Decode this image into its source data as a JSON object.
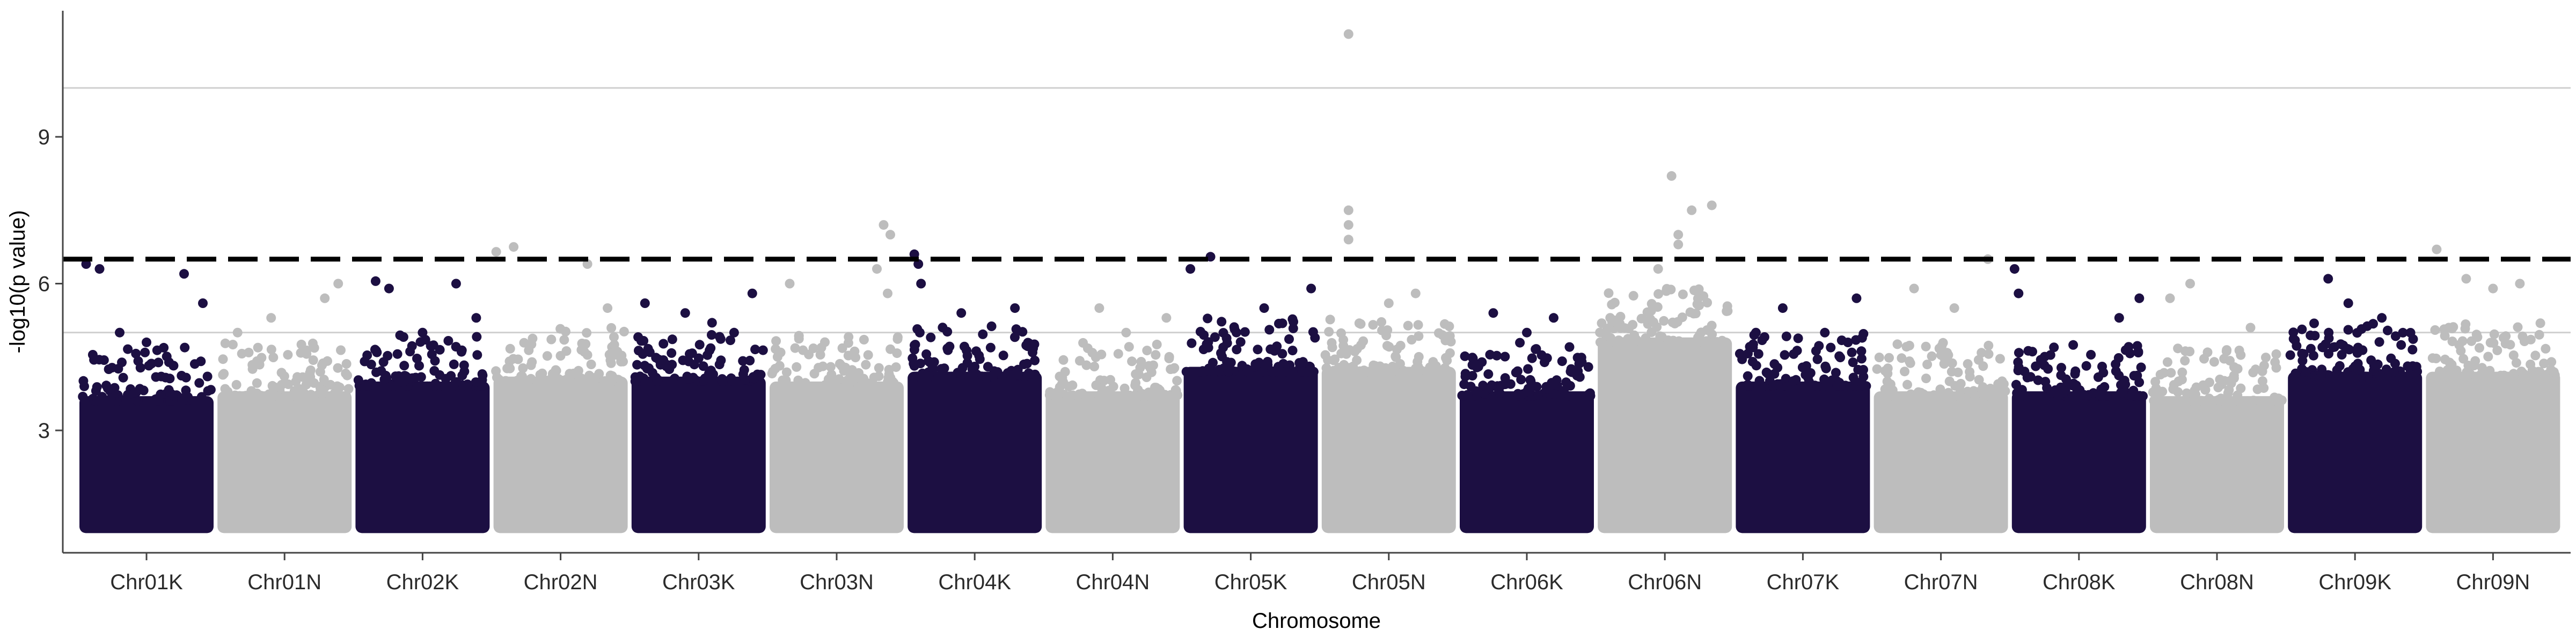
{
  "chart_data": {
    "type": "scatter",
    "subtype": "manhattan",
    "xlabel": "Chromosome",
    "ylabel": "-log10(p value)",
    "categories": [
      "Chr01K",
      "Chr01N",
      "Chr02K",
      "Chr02N",
      "Chr03K",
      "Chr03N",
      "Chr04K",
      "Chr04N",
      "Chr05K",
      "Chr05N",
      "Chr06K",
      "Chr06N",
      "Chr07K",
      "Chr07N",
      "Chr08K",
      "Chr08N",
      "Chr09K",
      "Chr09N"
    ],
    "yticks": [
      3,
      6,
      9
    ],
    "ylim": [
      0.5,
      11.5
    ],
    "grid": "horizontal",
    "colors": {
      "dark": "#1c0f42",
      "light": "#bdbdbd",
      "threshold": "#000000",
      "gridline": "#cfcfcf"
    },
    "thresholds": {
      "dashed": 6.5,
      "solid_upper": 10.0,
      "solid_lower": 5.0
    },
    "point_range_min": 1.0,
    "series": [
      {
        "chromosome": "Chr01K",
        "bulk_max": 4.3,
        "peaks": [
          {
            "pos": 0.05,
            "y": 6.4
          },
          {
            "pos": 0.15,
            "y": 6.3
          },
          {
            "pos": 0.78,
            "y": 6.2
          },
          {
            "pos": 0.92,
            "y": 5.6
          },
          {
            "pos": 0.3,
            "y": 5.0
          },
          {
            "pos": 0.5,
            "y": 4.8
          }
        ]
      },
      {
        "chromosome": "Chr01N",
        "bulk_max": 4.4,
        "peaks": [
          {
            "pos": 0.4,
            "y": 5.3
          },
          {
            "pos": 0.8,
            "y": 5.7
          },
          {
            "pos": 0.9,
            "y": 6.0
          },
          {
            "pos": 0.15,
            "y": 5.0
          }
        ]
      },
      {
        "chromosome": "Chr02K",
        "bulk_max": 4.6,
        "peaks": [
          {
            "pos": 0.15,
            "y": 6.05
          },
          {
            "pos": 0.25,
            "y": 5.9
          },
          {
            "pos": 0.75,
            "y": 6.0
          },
          {
            "pos": 0.9,
            "y": 5.3
          },
          {
            "pos": 0.5,
            "y": 5.0
          }
        ]
      },
      {
        "chromosome": "Chr02N",
        "bulk_max": 4.7,
        "peaks": [
          {
            "pos": 0.02,
            "y": 6.65
          },
          {
            "pos": 0.15,
            "y": 6.75
          },
          {
            "pos": 0.7,
            "y": 6.4
          },
          {
            "pos": 0.85,
            "y": 5.5
          }
        ]
      },
      {
        "chromosome": "Chr03K",
        "bulk_max": 4.7,
        "peaks": [
          {
            "pos": 0.1,
            "y": 5.6
          },
          {
            "pos": 0.4,
            "y": 5.4
          },
          {
            "pos": 0.6,
            "y": 5.2
          },
          {
            "pos": 0.9,
            "y": 5.8
          }
        ]
      },
      {
        "chromosome": "Chr03N",
        "bulk_max": 4.6,
        "peaks": [
          {
            "pos": 0.15,
            "y": 6.0
          },
          {
            "pos": 0.85,
            "y": 7.2
          },
          {
            "pos": 0.9,
            "y": 7.0
          },
          {
            "pos": 0.8,
            "y": 6.3
          },
          {
            "pos": 0.88,
            "y": 5.8
          }
        ]
      },
      {
        "chromosome": "Chr04K",
        "bulk_max": 4.8,
        "peaks": [
          {
            "pos": 0.05,
            "y": 6.6
          },
          {
            "pos": 0.08,
            "y": 6.4
          },
          {
            "pos": 0.1,
            "y": 6.0
          },
          {
            "pos": 0.4,
            "y": 5.4
          },
          {
            "pos": 0.8,
            "y": 5.5
          }
        ]
      },
      {
        "chromosome": "Chr04N",
        "bulk_max": 4.4,
        "peaks": [
          {
            "pos": 0.4,
            "y": 5.5
          },
          {
            "pos": 0.9,
            "y": 5.3
          },
          {
            "pos": 0.6,
            "y": 5.0
          }
        ]
      },
      {
        "chromosome": "Chr05K",
        "bulk_max": 4.9,
        "peaks": [
          {
            "pos": 0.05,
            "y": 6.3
          },
          {
            "pos": 0.2,
            "y": 6.55
          },
          {
            "pos": 0.6,
            "y": 5.5
          },
          {
            "pos": 0.95,
            "y": 5.9
          }
        ]
      },
      {
        "chromosome": "Chr05N",
        "bulk_max": 4.9,
        "peaks": [
          {
            "pos": 0.2,
            "y": 11.1
          },
          {
            "pos": 0.2,
            "y": 7.5
          },
          {
            "pos": 0.2,
            "y": 7.2
          },
          {
            "pos": 0.2,
            "y": 6.9
          },
          {
            "pos": 0.5,
            "y": 5.6
          },
          {
            "pos": 0.7,
            "y": 5.8
          }
        ]
      },
      {
        "chromosome": "Chr06K",
        "bulk_max": 4.4,
        "peaks": [
          {
            "pos": 0.25,
            "y": 5.4
          },
          {
            "pos": 0.7,
            "y": 5.3
          },
          {
            "pos": 0.5,
            "y": 5.0
          }
        ]
      },
      {
        "chromosome": "Chr06N",
        "bulk_max": 5.5,
        "peaks": [
          {
            "pos": 0.55,
            "y": 8.2
          },
          {
            "pos": 0.6,
            "y": 7.0
          },
          {
            "pos": 0.7,
            "y": 7.5
          },
          {
            "pos": 0.85,
            "y": 7.6
          },
          {
            "pos": 0.45,
            "y": 6.3
          },
          {
            "pos": 0.6,
            "y": 6.8
          }
        ]
      },
      {
        "chromosome": "Chr07K",
        "bulk_max": 4.6,
        "peaks": [
          {
            "pos": 0.35,
            "y": 5.5
          },
          {
            "pos": 0.9,
            "y": 5.7
          },
          {
            "pos": 0.15,
            "y": 5.0
          }
        ]
      },
      {
        "chromosome": "Chr07N",
        "bulk_max": 4.4,
        "peaks": [
          {
            "pos": 0.3,
            "y": 5.9
          },
          {
            "pos": 0.85,
            "y": 6.5
          },
          {
            "pos": 0.6,
            "y": 5.5
          }
        ]
      },
      {
        "chromosome": "Chr08K",
        "bulk_max": 4.4,
        "peaks": [
          {
            "pos": 0.02,
            "y": 6.3
          },
          {
            "pos": 0.05,
            "y": 5.8
          },
          {
            "pos": 0.95,
            "y": 5.7
          },
          {
            "pos": 0.8,
            "y": 5.3
          }
        ]
      },
      {
        "chromosome": "Chr08N",
        "bulk_max": 4.3,
        "peaks": [
          {
            "pos": 0.15,
            "y": 5.7
          },
          {
            "pos": 0.3,
            "y": 6.0
          },
          {
            "pos": 0.75,
            "y": 5.1
          }
        ]
      },
      {
        "chromosome": "Chr09K",
        "bulk_max": 4.8,
        "peaks": [
          {
            "pos": 0.3,
            "y": 6.1
          },
          {
            "pos": 0.45,
            "y": 5.6
          },
          {
            "pos": 0.7,
            "y": 5.3
          }
        ]
      },
      {
        "chromosome": "Chr09N",
        "bulk_max": 4.8,
        "peaks": [
          {
            "pos": 0.08,
            "y": 6.7
          },
          {
            "pos": 0.3,
            "y": 6.1
          },
          {
            "pos": 0.5,
            "y": 5.9
          },
          {
            "pos": 0.7,
            "y": 6.0
          }
        ]
      }
    ]
  }
}
